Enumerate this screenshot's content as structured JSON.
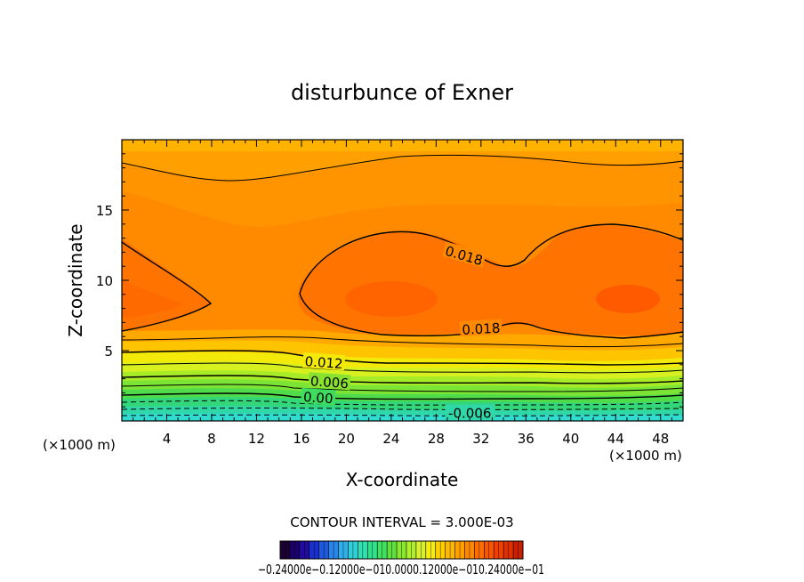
{
  "chart_data": {
    "type": "contour",
    "title": "disturbunce of Exner",
    "xlabel": "X-coordinate",
    "ylabel": "Z-coordinate",
    "x_unit": "(×1000 m)",
    "y_unit": "(×1000 m)",
    "xlim": [
      0,
      50
    ],
    "ylim": [
      0,
      20
    ],
    "xticks": [
      4,
      8,
      12,
      16,
      20,
      24,
      28,
      32,
      36,
      40,
      44,
      48
    ],
    "yticks": [
      5,
      10,
      15
    ],
    "contour_interval_label": "CONTOUR INTERVAL = 3.000E-03",
    "contour_labels": [
      {
        "text": "0.018",
        "x": 30.5,
        "z": 11.8,
        "angle": 16
      },
      {
        "text": "0.018",
        "x": 32.0,
        "z": 6.6,
        "angle": -3
      },
      {
        "text": "0.012",
        "x": 18.0,
        "z": 4.2,
        "angle": 4
      },
      {
        "text": "0.006",
        "x": 18.5,
        "z": 2.8,
        "angle": 4
      },
      {
        "text": "0.00",
        "x": 17.5,
        "z": 1.7,
        "angle": 4
      },
      {
        "text": "-0.006",
        "x": 31.0,
        "z": 0.6,
        "angle": 0
      }
    ],
    "colorbar": {
      "colors": [
        "#1a0033",
        "#1c006a",
        "#200aa0",
        "#1a30cc",
        "#1e5ae0",
        "#2a85e8",
        "#30aeea",
        "#30cfd8",
        "#30e0b0",
        "#30e08a",
        "#40e060",
        "#60e040",
        "#88e830",
        "#b0ee30",
        "#d8f030",
        "#f6ec10",
        "#ffd000",
        "#ffb800",
        "#ffa000",
        "#ff8800",
        "#ff6e00",
        "#f85500",
        "#f04000",
        "#e03000",
        "#c82000"
      ],
      "labels": [
        "-0.24000e-01",
        "-0.12000e-01",
        "0.0000",
        "0.12000e-01",
        "0.24000e-01"
      ],
      "label_text": "−0.24000e−0.12000e−010.0000.12000e−010.24000e−01"
    }
  }
}
